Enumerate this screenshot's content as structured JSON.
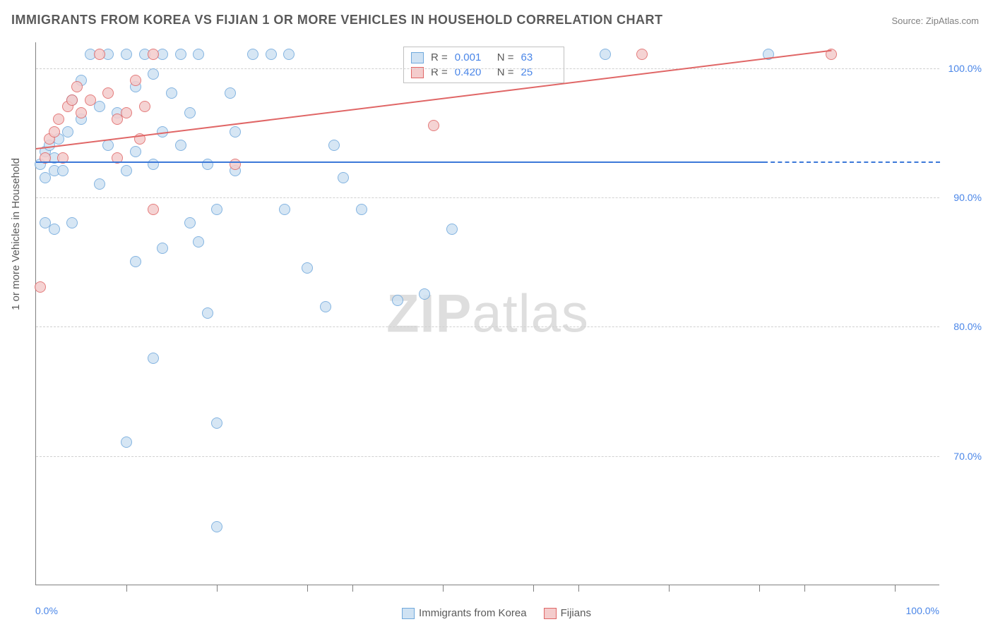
{
  "title": "IMMIGRANTS FROM KOREA VS FIJIAN 1 OR MORE VEHICLES IN HOUSEHOLD CORRELATION CHART",
  "source": "Source: ZipAtlas.com",
  "watermark_a": "ZIP",
  "watermark_b": "atlas",
  "chart": {
    "type": "scatter",
    "background_color": "#ffffff",
    "grid_color": "#d0d0d0",
    "axis_color": "#808080",
    "text_color": "#5a5a5a",
    "value_color": "#4a86e8",
    "xlim": [
      0,
      100
    ],
    "ylim": [
      60,
      102
    ],
    "x_ticks": [
      10,
      20,
      30,
      35,
      45,
      55,
      60,
      70,
      80,
      85,
      95
    ],
    "y_gridlines": [
      70,
      80,
      90,
      100
    ],
    "y_tick_labels": [
      "70.0%",
      "80.0%",
      "90.0%",
      "100.0%"
    ],
    "x_min_label": "0.0%",
    "x_max_label": "100.0%",
    "y_axis_title": "1 or more Vehicles in Household",
    "marker_radius": 8,
    "title_fontsize": 18,
    "label_fontsize": 14,
    "series": [
      {
        "id": "korea",
        "label": "Immigrants from Korea",
        "fill": "#cfe2f3",
        "stroke": "#6fa8dc",
        "line_color": "#3c78d8",
        "r_value": "0.001",
        "n_value": "63",
        "trend": {
          "x1": 0,
          "y1": 92.8,
          "x2": 80.5,
          "y2": 92.8,
          "dash_to_x": 100
        },
        "points": [
          [
            0.5,
            92.5
          ],
          [
            1,
            93.5
          ],
          [
            1.5,
            94
          ],
          [
            2,
            93
          ],
          [
            1,
            91.5
          ],
          [
            2,
            92
          ],
          [
            2.5,
            94.5
          ],
          [
            1,
            88
          ],
          [
            3,
            92
          ],
          [
            3.5,
            95
          ],
          [
            4,
            97.5
          ],
          [
            5,
            99
          ],
          [
            6,
            101
          ],
          [
            8,
            101
          ],
          [
            10,
            101
          ],
          [
            12,
            101
          ],
          [
            14,
            101
          ],
          [
            16,
            101
          ],
          [
            18,
            101
          ],
          [
            5,
            96
          ],
          [
            7,
            97
          ],
          [
            9,
            96.5
          ],
          [
            11,
            98.5
          ],
          [
            13,
            99.5
          ],
          [
            15,
            98
          ],
          [
            17,
            96.5
          ],
          [
            14,
            95
          ],
          [
            11,
            93.5
          ],
          [
            8,
            94
          ],
          [
            2,
            87.5
          ],
          [
            4,
            88
          ],
          [
            7,
            91
          ],
          [
            10,
            92
          ],
          [
            13,
            92.5
          ],
          [
            16,
            94
          ],
          [
            19,
            92.5
          ],
          [
            22,
            95
          ],
          [
            22,
            92
          ],
          [
            20,
            89
          ],
          [
            17,
            88
          ],
          [
            14,
            86
          ],
          [
            11,
            85
          ],
          [
            10,
            71
          ],
          [
            13,
            77.5
          ],
          [
            18,
            86.5
          ],
          [
            19,
            81
          ],
          [
            20,
            72.5
          ],
          [
            20,
            64.5
          ],
          [
            21.5,
            98
          ],
          [
            24,
            101
          ],
          [
            26,
            101
          ],
          [
            28,
            101
          ],
          [
            27.5,
            89
          ],
          [
            30,
            84.5
          ],
          [
            32,
            81.5
          ],
          [
            33,
            94
          ],
          [
            34,
            91.5
          ],
          [
            36,
            89
          ],
          [
            40,
            82
          ],
          [
            43,
            82.5
          ],
          [
            46,
            87.5
          ],
          [
            63,
            101
          ],
          [
            81,
            101
          ]
        ]
      },
      {
        "id": "fijian",
        "label": "Fijians",
        "fill": "#f4cccc",
        "stroke": "#e06666",
        "line_color": "#e06666",
        "r_value": "0.420",
        "n_value": "25",
        "trend": {
          "x1": 0,
          "y1": 93.8,
          "x2": 88,
          "y2": 101.4
        },
        "points": [
          [
            0.5,
            83
          ],
          [
            1,
            93
          ],
          [
            1.5,
            94.5
          ],
          [
            2,
            95
          ],
          [
            2.5,
            96
          ],
          [
            3,
            93
          ],
          [
            3.5,
            97
          ],
          [
            4,
            97.5
          ],
          [
            4.5,
            98.5
          ],
          [
            5,
            96.5
          ],
          [
            6,
            97.5
          ],
          [
            7,
            101
          ],
          [
            8,
            98
          ],
          [
            9,
            96
          ],
          [
            10,
            96.5
          ],
          [
            11,
            99
          ],
          [
            9,
            93
          ],
          [
            12,
            97
          ],
          [
            11.5,
            94.5
          ],
          [
            13,
            101
          ],
          [
            13,
            89
          ],
          [
            22,
            92.5
          ],
          [
            44,
            95.5
          ],
          [
            67,
            101
          ],
          [
            88,
            101
          ]
        ]
      }
    ]
  },
  "legend_top": {
    "r_label": "R =",
    "n_label": "N ="
  }
}
